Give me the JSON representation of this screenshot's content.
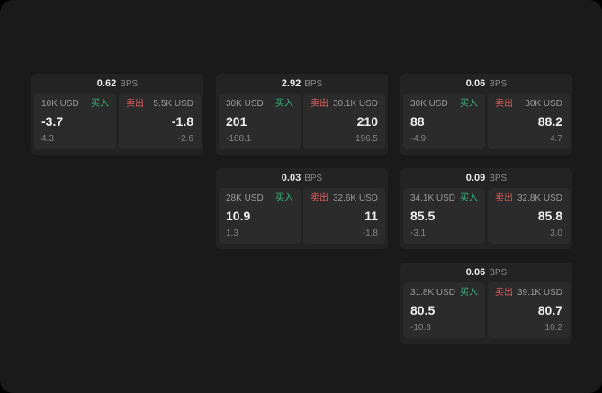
{
  "labels": {
    "bps": "BPS",
    "buy": "买入",
    "sell": "卖出"
  },
  "colors": {
    "background": "#1a1a1a",
    "card": "#232323",
    "quote_box": "#2b2b2b",
    "buy_green": "#35b57c",
    "sell_red": "#e25d5d",
    "text_primary": "#ededed",
    "text_muted": "#8a8a8a"
  },
  "cards": [
    {
      "bps": "0.62",
      "buy": {
        "size": "10K USD",
        "price": "-3.7",
        "delta": "4.3"
      },
      "sell": {
        "size": "5.5K USD",
        "price": "-1.8",
        "delta": "-2.6"
      }
    },
    {
      "bps": "2.92",
      "buy": {
        "size": "30K USD",
        "price": "201",
        "delta": "-188.1"
      },
      "sell": {
        "size": "30.1K USD",
        "price": "210",
        "delta": "196.5"
      }
    },
    {
      "bps": "0.06",
      "buy": {
        "size": "30K USD",
        "price": "88",
        "delta": "-4.9"
      },
      "sell": {
        "size": "30K USD",
        "price": "88.2",
        "delta": "4.7"
      }
    },
    {
      "bps": "0.03",
      "buy": {
        "size": "28K USD",
        "price": "10.9",
        "delta": "1.3"
      },
      "sell": {
        "size": "32.6K USD",
        "price": "11",
        "delta": "-1.8"
      }
    },
    {
      "bps": "0.09",
      "buy": {
        "size": "34.1K USD",
        "price": "85.5",
        "delta": "-3.1"
      },
      "sell": {
        "size": "32.8K USD",
        "price": "85.8",
        "delta": "3.0"
      }
    },
    {
      "bps": "0.06",
      "buy": {
        "size": "31.8K USD",
        "price": "80.5",
        "delta": "-10.8"
      },
      "sell": {
        "size": "39.1K USD",
        "price": "80.7",
        "delta": "10.2"
      }
    }
  ]
}
